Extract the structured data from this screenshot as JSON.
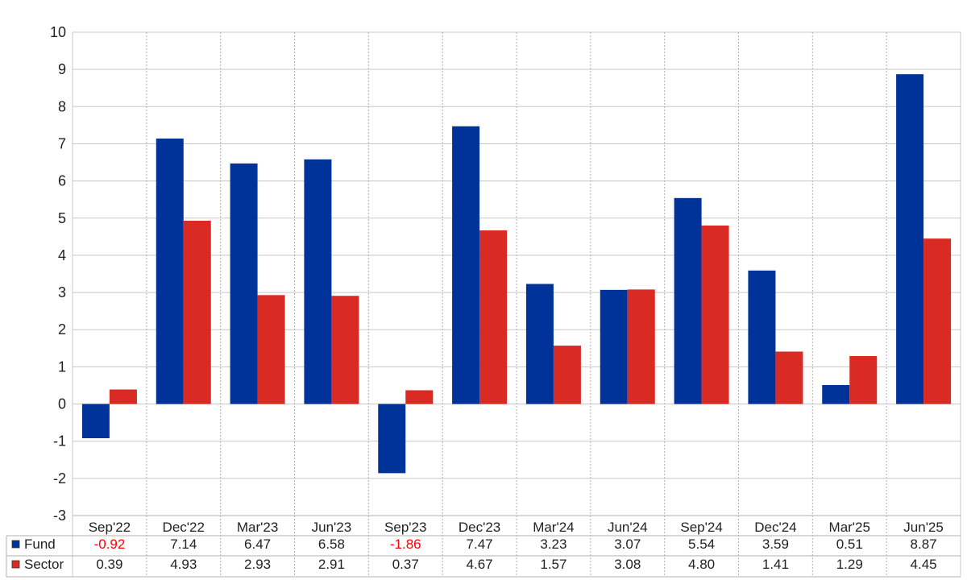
{
  "chart_data": {
    "type": "bar",
    "categories": [
      "Sep'22",
      "Dec'22",
      "Mar'23",
      "Jun'23",
      "Sep'23",
      "Dec'23",
      "Mar'24",
      "Jun'24",
      "Sep'24",
      "Dec'24",
      "Mar'25",
      "Jun'25"
    ],
    "series": [
      {
        "name": "Fund",
        "color": "#003399",
        "values": [
          -0.92,
          7.14,
          6.47,
          6.58,
          -1.86,
          7.47,
          3.23,
          3.07,
          5.54,
          3.59,
          0.51,
          8.87
        ],
        "labels": [
          "-0.92",
          "7.14",
          "6.47",
          "6.58",
          "-1.86",
          "7.47",
          "3.23",
          "3.07",
          "5.54",
          "3.59",
          "0.51",
          "8.87"
        ]
      },
      {
        "name": "Sector",
        "color": "#d92b23",
        "values": [
          0.39,
          4.93,
          2.93,
          2.91,
          0.37,
          4.67,
          1.57,
          3.08,
          4.8,
          1.41,
          1.29,
          4.45
        ],
        "labels": [
          "0.39",
          "4.93",
          "2.93",
          "2.91",
          "0.37",
          "4.67",
          "1.57",
          "3.08",
          "4.80",
          "1.41",
          "1.29",
          "4.45"
        ]
      }
    ],
    "ylim": [
      -3,
      10
    ],
    "yticks": [
      "-3",
      "-2",
      "-1",
      "0",
      "1",
      "2",
      "3",
      "4",
      "5",
      "6",
      "7",
      "8",
      "9",
      "10"
    ],
    "grid": true,
    "legend": "table-below",
    "negative_value_color": "#ff0000"
  }
}
